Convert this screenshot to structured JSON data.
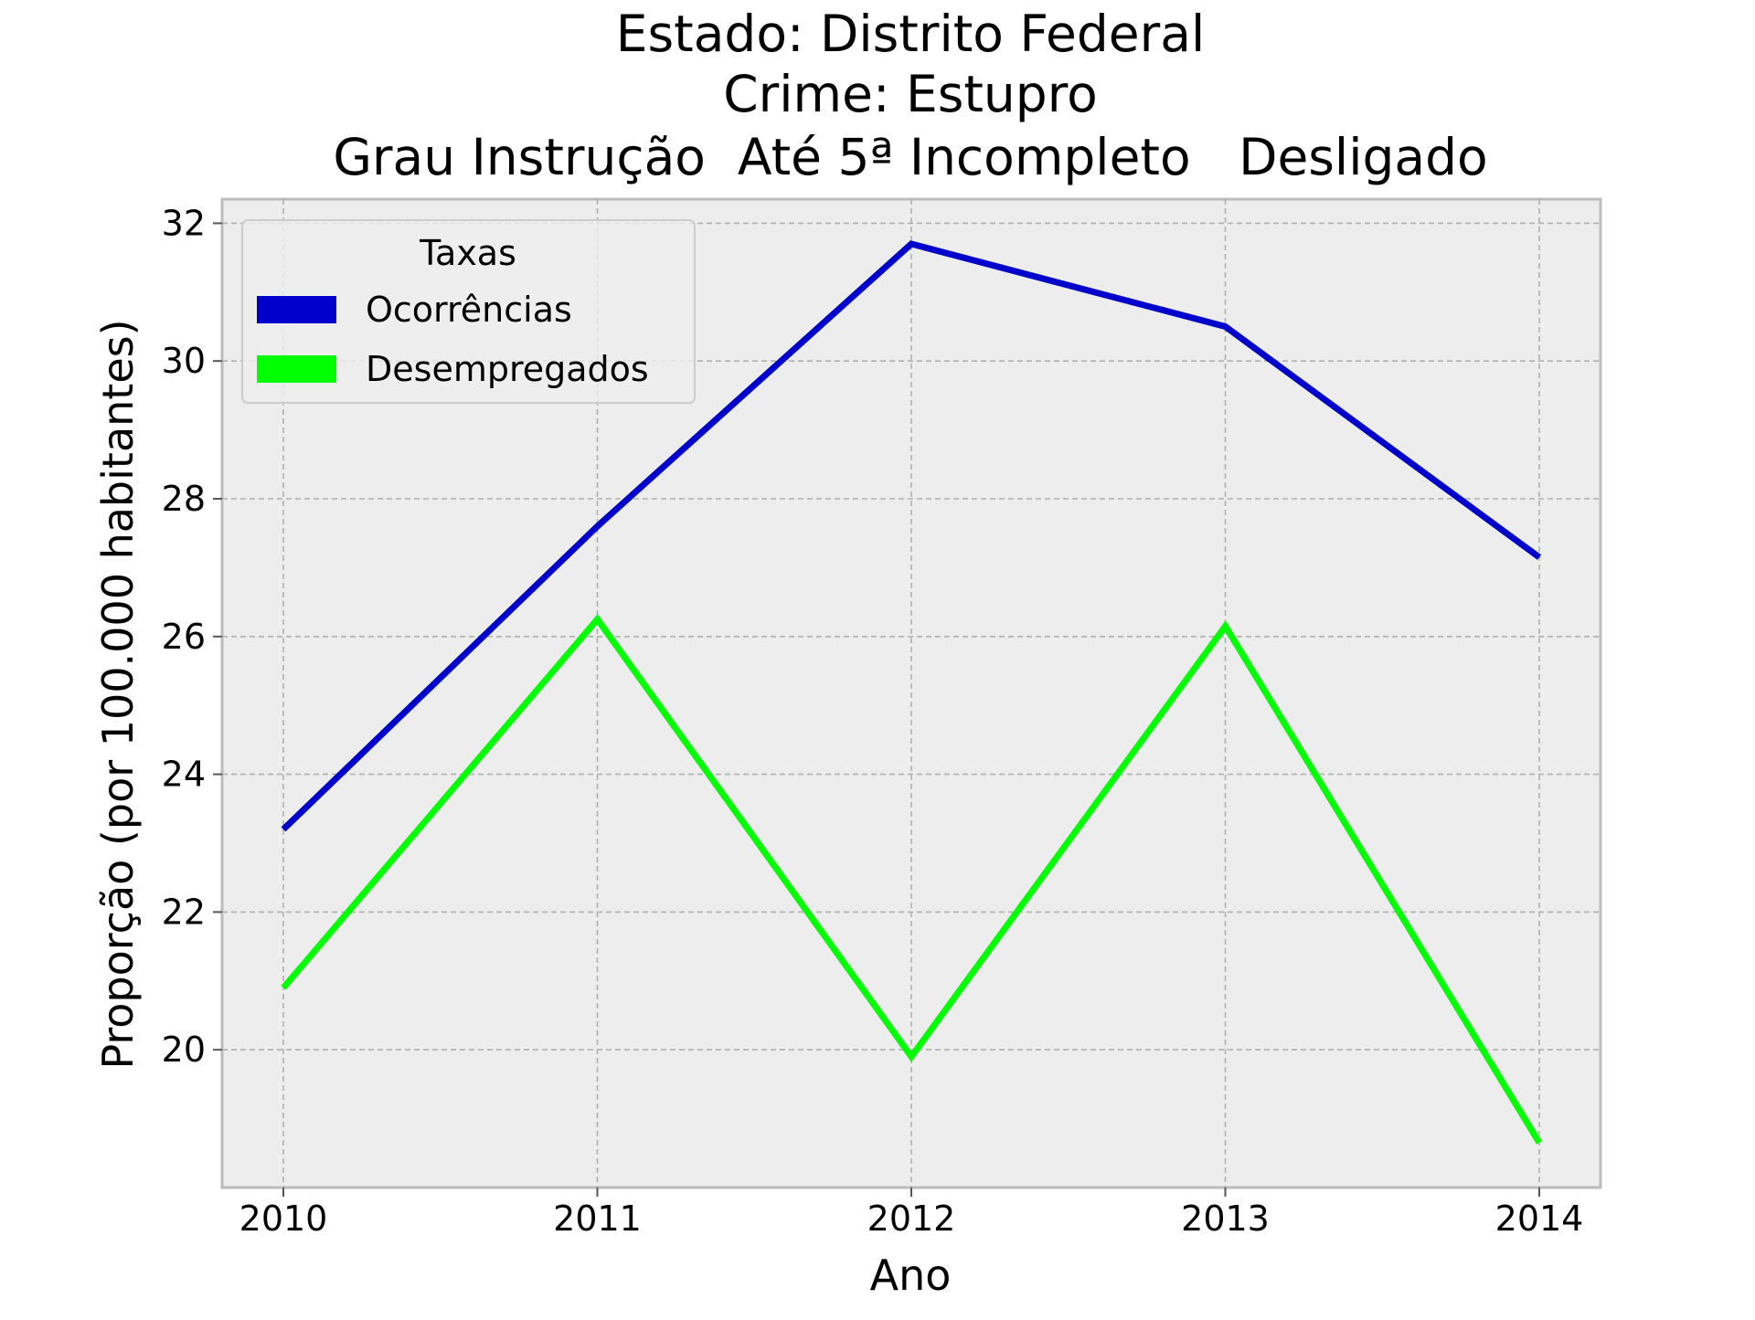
{
  "chart_data": {
    "type": "line",
    "title_lines": [
      "Estado: Distrito Federal",
      "Crime: Estupro",
      "Grau Instrução  Até 5ª Incompleto   Desligado"
    ],
    "xlabel": "Ano",
    "ylabel": "Proporção (por 100.000 habitantes)",
    "categories": [
      "2010",
      "2011",
      "2012",
      "2013",
      "2014"
    ],
    "y_ticks": [
      20,
      22,
      24,
      26,
      28,
      30,
      32
    ],
    "ylim": [
      18.0,
      32.35
    ],
    "grid": true,
    "legend": {
      "title": "Taxas",
      "placement": "top-left"
    },
    "series": [
      {
        "name": "Ocorrências",
        "color": "#0000cc",
        "values": [
          23.2,
          27.6,
          31.7,
          30.5,
          27.15
        ]
      },
      {
        "name": "Desempregados",
        "color": "#00ff00",
        "values": [
          20.9,
          26.25,
          19.9,
          26.15,
          18.65
        ]
      }
    ]
  }
}
